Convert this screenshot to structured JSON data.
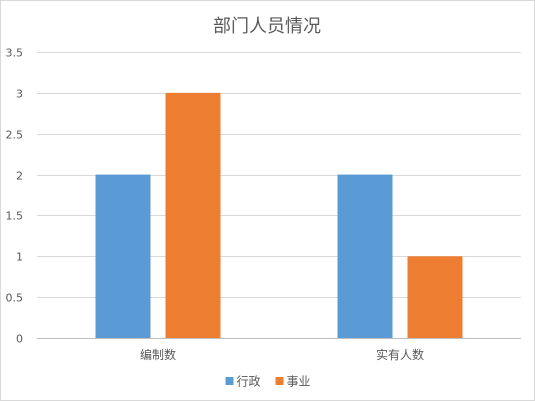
{
  "chart_data": {
    "type": "bar",
    "title": "部门人员情况",
    "categories": [
      "编制数",
      "实有人数"
    ],
    "series": [
      {
        "name": "行政",
        "values": [
          2,
          2
        ],
        "color": "#5b9bd5"
      },
      {
        "name": "事业",
        "values": [
          3,
          1
        ],
        "color": "#ed7d31"
      }
    ],
    "ylim": [
      0,
      3.5
    ],
    "yticks": [
      "0",
      "0.5",
      "1",
      "1.5",
      "2",
      "2.5",
      "3",
      "3.5"
    ],
    "grid": true,
    "legend": "bottom"
  }
}
